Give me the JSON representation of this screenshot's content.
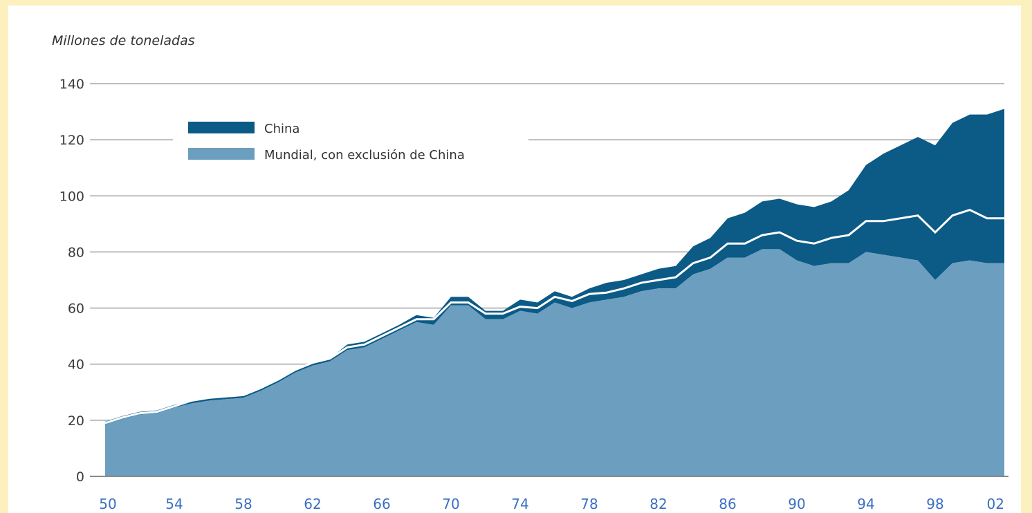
{
  "chart_data": {
    "type": "area",
    "ylabel": "Millones de toneladas",
    "ylim": [
      0,
      140
    ],
    "yticks": [
      0,
      20,
      40,
      60,
      80,
      100,
      120,
      140
    ],
    "xlim": [
      1950,
      2002
    ],
    "xtick_labels": [
      "50",
      "54",
      "58",
      "62",
      "66",
      "70",
      "74",
      "78",
      "82",
      "86",
      "90",
      "94",
      "98",
      "02"
    ],
    "grid": true,
    "stacked": true,
    "legend_position": "top-left",
    "colors": {
      "China": "#0c5a86",
      "Mundial, con exclusión de China": "#6b9ebf",
      "separator": "#ffffff",
      "grid": "#bdbdbd"
    },
    "x": [
      1950,
      1951,
      1952,
      1953,
      1954,
      1955,
      1956,
      1957,
      1958,
      1959,
      1960,
      1961,
      1962,
      1963,
      1964,
      1965,
      1966,
      1967,
      1968,
      1969,
      1970,
      1971,
      1972,
      1973,
      1974,
      1975,
      1976,
      1977,
      1978,
      1979,
      1980,
      1981,
      1982,
      1983,
      1984,
      1985,
      1986,
      1987,
      1988,
      1989,
      1990,
      1991,
      1992,
      1993,
      1994,
      1995,
      1996,
      1997,
      1998,
      1999,
      2000,
      2001,
      2002
    ],
    "series": [
      {
        "name": "Mundial, con exclusión de China",
        "values": [
          18.5,
          20.5,
          22,
          22.5,
          24.5,
          26,
          27,
          27.5,
          28,
          30.5,
          33.5,
          37,
          39.5,
          41,
          45,
          46,
          49,
          52,
          55,
          54,
          61,
          61,
          56,
          56,
          59,
          58,
          62,
          60,
          62,
          63,
          64,
          66,
          67,
          67,
          72,
          74,
          78,
          78,
          81,
          81,
          77,
          75,
          76,
          76,
          80,
          79,
          78,
          77,
          70,
          76,
          77,
          76,
          76
        ]
      },
      {
        "name": "China",
        "values": [
          1,
          1,
          1,
          1,
          1,
          1,
          1,
          1,
          1,
          1,
          1,
          1,
          1,
          1,
          2,
          2,
          2,
          2,
          2.5,
          2.5,
          3,
          3,
          3,
          3,
          4,
          4,
          4,
          4,
          5,
          6,
          6,
          6,
          7,
          8,
          10,
          11,
          14,
          16,
          17,
          18,
          20,
          21,
          22,
          26,
          31,
          36,
          40,
          44,
          48,
          50,
          52,
          53,
          55
        ]
      }
    ],
    "series_separator": [
      19,
      21,
      22.5,
      23,
      25,
      27,
      28,
      28.5,
      29,
      31.5,
      34.5,
      38,
      40.5,
      42,
      46,
      47,
      50,
      53,
      56,
      56,
      62,
      62,
      58,
      58,
      60.5,
      60,
      64,
      62.5,
      65,
      65.5,
      67,
      69,
      70,
      71,
      76,
      78,
      83,
      83,
      86,
      87,
      84,
      83,
      85,
      86,
      91,
      91,
      92,
      93,
      87,
      93,
      95,
      92,
      92
    ]
  }
}
